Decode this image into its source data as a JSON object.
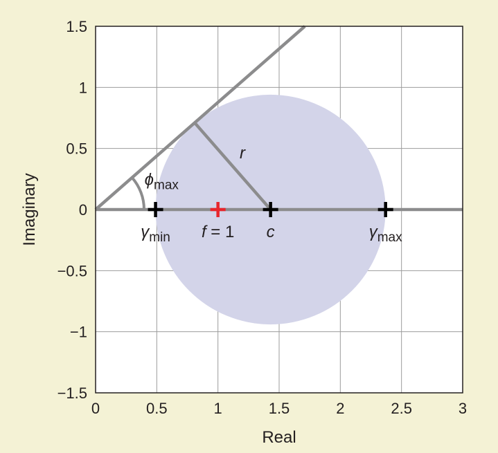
{
  "chart_data": {
    "type": "scatter",
    "xlabel": "Real",
    "ylabel": "Imaginary",
    "xlim": [
      0,
      3
    ],
    "ylim": [
      -1.5,
      1.5
    ],
    "xticks": [
      0,
      0.5,
      1,
      1.5,
      2,
      2.5,
      3
    ],
    "xtick_labels": [
      "0",
      "0.5",
      "1",
      "1.5",
      "2",
      "2.5",
      "3"
    ],
    "yticks": [
      1.5,
      1,
      0.5,
      0,
      -0.5,
      -1,
      -1.5
    ],
    "ytick_labels": [
      "1.5",
      "1",
      "0.5",
      "0",
      "−0.5",
      "−1",
      "−1.5"
    ],
    "grid": true,
    "disk": {
      "center": [
        1.43,
        0
      ],
      "radius": 0.94,
      "color": "#d3d4e9"
    },
    "points": [
      {
        "name": "gamma_min",
        "x": 0.49,
        "y": 0,
        "color": "#000000",
        "label_main": "γ",
        "label_sub": "min"
      },
      {
        "name": "f",
        "x": 1.0,
        "y": 0,
        "color": "#e8262d",
        "label_main": "f",
        "label_rest": " = 1"
      },
      {
        "name": "c",
        "x": 1.43,
        "y": 0,
        "color": "#000000",
        "label_main": "c"
      },
      {
        "name": "gamma_max",
        "x": 2.37,
        "y": 0,
        "color": "#000000",
        "label_main": "γ",
        "label_sub": "max"
      }
    ],
    "lines": {
      "real_axis": {
        "from": [
          0,
          0
        ],
        "to": [
          3,
          0
        ]
      },
      "tangent_line": {
        "from": [
          0,
          0
        ],
        "to": [
          1.71,
          1.5
        ]
      },
      "radius_segment": {
        "from": [
          0.81,
          0.71
        ],
        "to": [
          1.43,
          0
        ]
      }
    },
    "annotations": {
      "r_label": {
        "text": "r",
        "at": [
          1.2,
          0.42
        ]
      },
      "phi_label": {
        "main": "ϕ",
        "sub": "max",
        "at": [
          0.4,
          0.2
        ]
      }
    },
    "line_color": "#8c8c8d"
  }
}
